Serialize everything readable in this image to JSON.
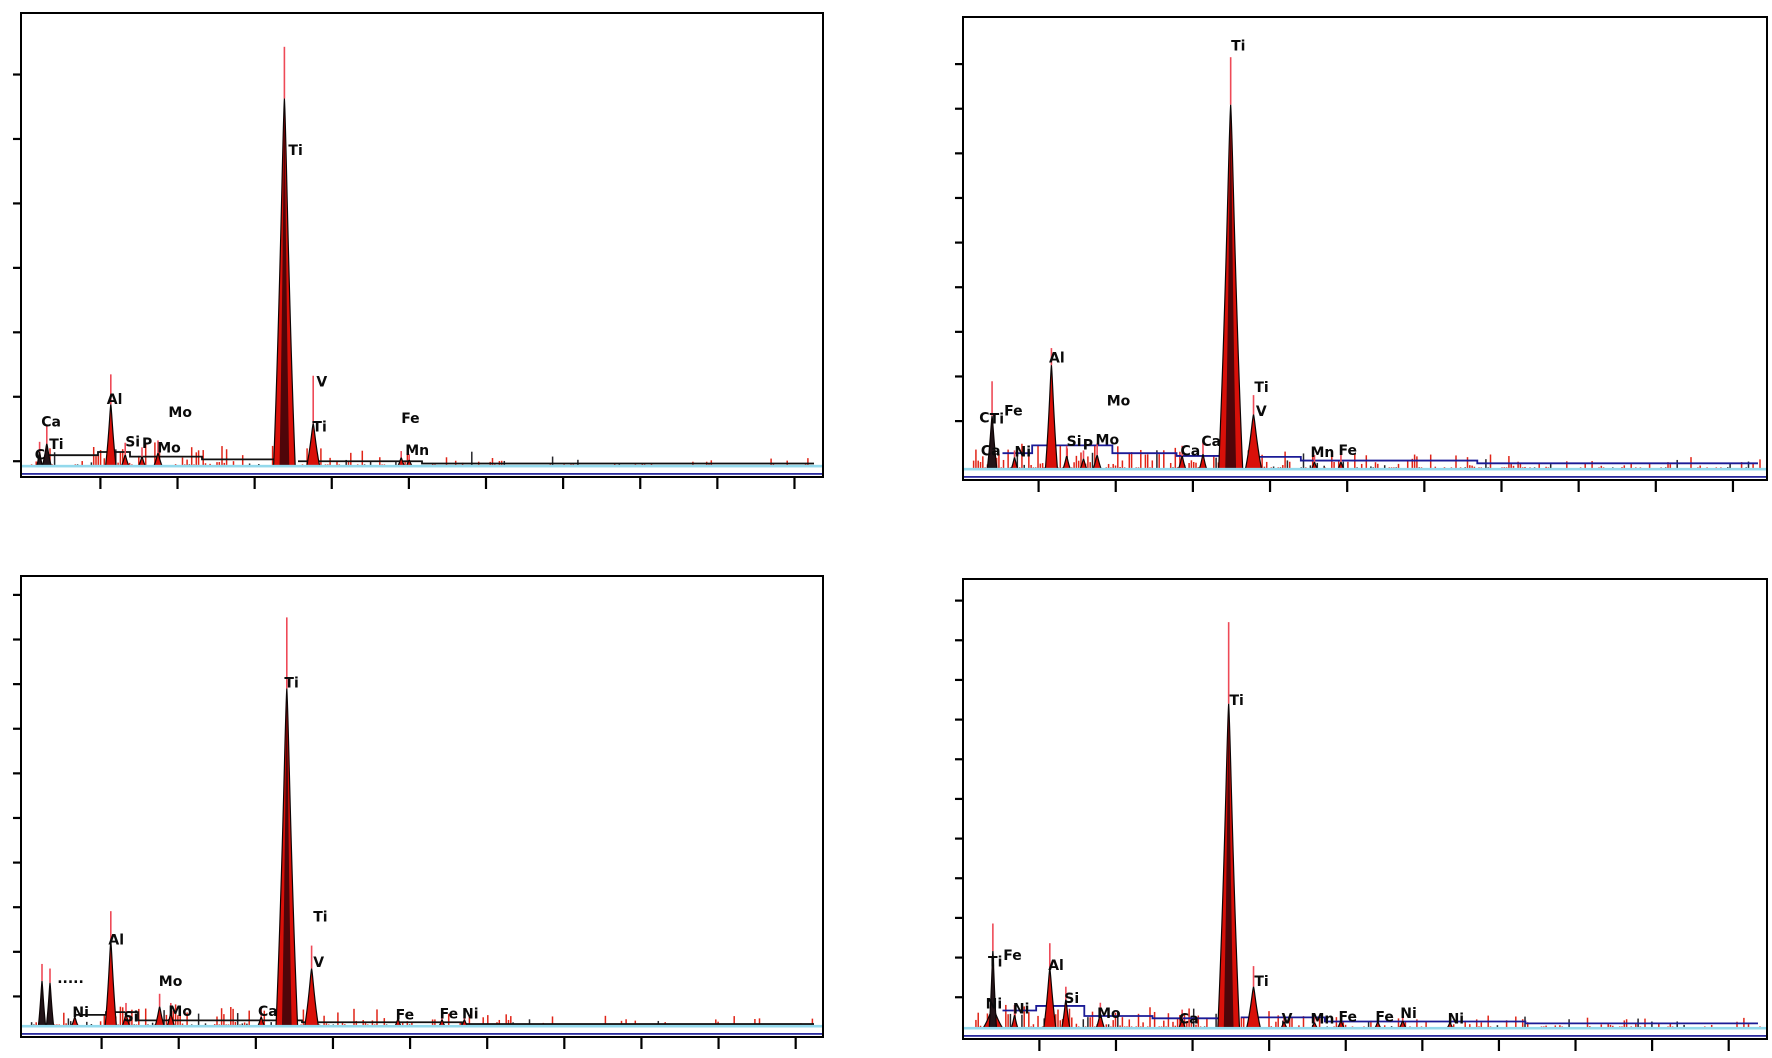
{
  "colors": {
    "background": "#ffffff",
    "panel_border": "#000000",
    "peak_red": "#d91009",
    "peak_dark": "#231418",
    "peak_core": "#360409",
    "peak_stroke": "#0d0505",
    "tip_pink": "#ee4a57",
    "noise_red": "#e02417",
    "noise_dark": "#26262b",
    "baseline_cyan": "#93d9ec",
    "baseline_navy": "#2a2a9e",
    "fit_navy": "#1b1b96",
    "fit_black": "#111111",
    "label_color": "#0a0a0a"
  },
  "chart_data": [
    {
      "id": "top-left",
      "type": "area",
      "title": "",
      "xlabel": "",
      "ylabel": "",
      "x_axis": {
        "tick_start_frac": 0.098,
        "tick_step_frac": 0.0964,
        "tick_count": 10,
        "tick_labels": []
      },
      "y_axis": {
        "tick_start_frac": 0.131,
        "tick_step_frac": 0.1395,
        "tick_count": 7,
        "tick_labels": []
      },
      "baseline_frac": 0.978,
      "peaks": [
        {
          "element": "C",
          "x": 0.022,
          "h": 0.03,
          "tip": 0.052,
          "w": 0.007,
          "dark": true
        },
        {
          "element": "Ca/Ti",
          "x": 0.031,
          "h": 0.048,
          "tip": 0.088,
          "w": 0.011,
          "dark": true
        },
        {
          "element": "Al",
          "x": 0.111,
          "h": 0.133,
          "tip": 0.198,
          "w": 0.013
        },
        {
          "element": "Si",
          "x": 0.129,
          "h": 0.024,
          "tip": 0.05,
          "w": 0.009
        },
        {
          "element": "P",
          "x": 0.15,
          "h": 0.02,
          "tip": 0.04,
          "w": 0.008
        },
        {
          "element": "Mo",
          "x": 0.17,
          "h": 0.028,
          "tip": 0.055,
          "w": 0.01
        },
        {
          "element": "Ti",
          "x": 0.328,
          "h": 0.795,
          "tip": 0.907,
          "w": 0.027,
          "core": true
        },
        {
          "element": "Ti/V",
          "x": 0.364,
          "h": 0.092,
          "tip": 0.195,
          "w": 0.016
        },
        {
          "element": "Fe",
          "x": 0.474,
          "h": 0.018,
          "tip": 0.032,
          "w": 0.008
        },
        {
          "element": "Mn",
          "x": 0.484,
          "h": 0.013,
          "tip": 0.025,
          "w": 0.007
        }
      ],
      "labels": [
        [
          "Ca",
          0.024,
          0.869
        ],
        [
          "C",
          0.016,
          0.94
        ],
        [
          "Ti",
          0.034,
          0.918
        ],
        [
          "Al",
          0.106,
          0.82
        ],
        [
          "Si",
          0.129,
          0.912
        ],
        [
          "P",
          0.15,
          0.916
        ],
        [
          "Mo",
          0.169,
          0.925
        ],
        [
          "Mo",
          0.183,
          0.848
        ],
        [
          "Ti",
          0.333,
          0.281
        ],
        [
          "V",
          0.368,
          0.783
        ],
        [
          "Ti",
          0.363,
          0.88
        ],
        [
          "Fe",
          0.474,
          0.861
        ],
        [
          "Mn",
          0.479,
          0.931
        ]
      ],
      "noise": {
        "seed": 7,
        "regions": [
          [
            0.012,
            0.1,
            0.03,
            0.55
          ],
          [
            0.1,
            0.25,
            0.032,
            0.6
          ],
          [
            0.25,
            0.43,
            0.028,
            0.5
          ],
          [
            0.43,
            0.6,
            0.02,
            0.35
          ],
          [
            0.6,
            0.995,
            0.015,
            0.22
          ]
        ]
      },
      "fit_line": {
        "color": "fit_black",
        "segments": [
          [
            0.03,
            0.095,
            0.955
          ],
          [
            0.095,
            0.135,
            0.948
          ],
          [
            0.135,
            0.225,
            0.958
          ],
          [
            0.225,
            0.315,
            0.964
          ],
          [
            0.345,
            0.5,
            0.968
          ],
          [
            0.5,
            0.99,
            0.973
          ]
        ]
      }
    },
    {
      "id": "top-right",
      "type": "area",
      "title": "",
      "xlabel": "",
      "ylabel": "",
      "x_axis": {
        "tick_start_frac": 0.093,
        "tick_step_frac": 0.0962,
        "tick_count": 10,
        "tick_labels": []
      },
      "y_axis": {
        "tick_start_frac": 0.1,
        "tick_step_frac": 0.0968,
        "tick_count": 9,
        "tick_labels": []
      },
      "baseline_frac": 0.978,
      "peaks": [
        {
          "element": "C/Ti/Ca",
          "x": 0.035,
          "h": 0.115,
          "tip": 0.19,
          "w": 0.012,
          "dark": true
        },
        {
          "element": "Ni",
          "x": 0.063,
          "h": 0.025,
          "tip": 0.04,
          "w": 0.008
        },
        {
          "element": "Al",
          "x": 0.109,
          "h": 0.225,
          "tip": 0.262,
          "w": 0.015
        },
        {
          "element": "Si",
          "x": 0.128,
          "h": 0.028,
          "tip": 0.05,
          "w": 0.009
        },
        {
          "element": "P",
          "x": 0.149,
          "h": 0.022,
          "tip": 0.04,
          "w": 0.008
        },
        {
          "element": "Mo",
          "x": 0.166,
          "h": 0.03,
          "tip": 0.055,
          "w": 0.01
        },
        {
          "element": "Ca",
          "x": 0.272,
          "h": 0.028,
          "tip": 0.05,
          "w": 0.009
        },
        {
          "element": "Ca",
          "x": 0.298,
          "h": 0.032,
          "tip": 0.06,
          "w": 0.009
        },
        {
          "element": "Ti",
          "x": 0.3325,
          "h": 0.79,
          "tip": 0.893,
          "w": 0.03,
          "core": true
        },
        {
          "element": "Ti/V",
          "x": 0.361,
          "h": 0.118,
          "tip": 0.16,
          "w": 0.02
        },
        {
          "element": "Mn",
          "x": 0.437,
          "h": 0.015,
          "tip": 0.03,
          "w": 0.007
        },
        {
          "element": "Fe",
          "x": 0.47,
          "h": 0.015,
          "tip": 0.03,
          "w": 0.007
        }
      ],
      "labels": [
        [
          "C",
          0.019,
          0.854
        ],
        [
          "Ti",
          0.032,
          0.856
        ],
        [
          "Fe",
          0.05,
          0.838
        ],
        [
          "Ca",
          0.021,
          0.925
        ],
        [
          "Ni",
          0.063,
          0.927
        ],
        [
          "Al",
          0.106,
          0.723
        ],
        [
          "Si",
          0.128,
          0.905
        ],
        [
          "P",
          0.148,
          0.912
        ],
        [
          "Mo",
          0.164,
          0.901
        ],
        [
          "Mo",
          0.178,
          0.817
        ],
        [
          "Ca",
          0.27,
          0.925
        ],
        [
          "Ca",
          0.296,
          0.905
        ],
        [
          "Ti",
          0.333,
          0.047
        ],
        [
          "Ti",
          0.362,
          0.787
        ],
        [
          "V",
          0.364,
          0.839
        ],
        [
          "Mn",
          0.432,
          0.928
        ],
        [
          "Fe",
          0.467,
          0.924
        ]
      ],
      "noise": {
        "seed": 11,
        "regions": [
          [
            0.012,
            0.1,
            0.035,
            0.65
          ],
          [
            0.1,
            0.3,
            0.032,
            0.7
          ],
          [
            0.3,
            0.45,
            0.028,
            0.6
          ],
          [
            0.45,
            0.7,
            0.022,
            0.5
          ],
          [
            0.7,
            0.995,
            0.018,
            0.4
          ]
        ]
      },
      "fit_line": {
        "color": "fit_navy",
        "segments": [
          [
            0.048,
            0.085,
            0.944
          ],
          [
            0.085,
            0.185,
            0.927
          ],
          [
            0.185,
            0.265,
            0.944
          ],
          [
            0.265,
            0.325,
            0.95
          ],
          [
            0.355,
            0.42,
            0.952
          ],
          [
            0.42,
            0.64,
            0.96
          ],
          [
            0.64,
            0.99,
            0.966
          ]
        ]
      }
    },
    {
      "id": "bottom-left",
      "type": "area",
      "title": "",
      "xlabel": "",
      "ylabel": "",
      "x_axis": {
        "tick_start_frac": 0.0995,
        "tick_step_frac": 0.0964,
        "tick_count": 10,
        "tick_labels": []
      },
      "y_axis": {
        "tick_start_frac": 0.039,
        "tick_step_frac": 0.0972,
        "tick_count": 10,
        "tick_labels": []
      },
      "baseline_frac": 0.978,
      "peaks": [
        {
          "element": "",
          "x": 0.025,
          "h": 0.098,
          "tip": 0.135,
          "w": 0.009,
          "dark": true
        },
        {
          "element": "",
          "x": 0.035,
          "h": 0.094,
          "tip": 0.125,
          "w": 0.009,
          "dark": true
        },
        {
          "element": "Ni",
          "x": 0.066,
          "h": 0.02,
          "tip": 0.035,
          "w": 0.008
        },
        {
          "element": "Al",
          "x": 0.111,
          "h": 0.185,
          "tip": 0.25,
          "w": 0.014
        },
        {
          "element": "Si",
          "x": 0.13,
          "h": 0.026,
          "tip": 0.05,
          "w": 0.009
        },
        {
          "element": "Mo",
          "x": 0.172,
          "h": 0.042,
          "tip": 0.07,
          "w": 0.011
        },
        {
          "element": "Mo",
          "x": 0.186,
          "h": 0.028,
          "tip": 0.05,
          "w": 0.009
        },
        {
          "element": "Ca",
          "x": 0.299,
          "h": 0.02,
          "tip": 0.04,
          "w": 0.008
        },
        {
          "element": "Ti",
          "x": 0.331,
          "h": 0.735,
          "tip": 0.89,
          "w": 0.027,
          "core": true
        },
        {
          "element": "Ti/V",
          "x": 0.362,
          "h": 0.125,
          "tip": 0.175,
          "w": 0.017
        },
        {
          "element": "Fe",
          "x": 0.47,
          "h": 0.016,
          "tip": 0.03,
          "w": 0.007
        },
        {
          "element": "Fe",
          "x": 0.525,
          "h": 0.014,
          "tip": 0.028,
          "w": 0.007
        },
        {
          "element": "Ni",
          "x": 0.553,
          "h": 0.014,
          "tip": 0.028,
          "w": 0.007
        }
      ],
      "labels": [
        [
          "·····",
          0.044,
          0.868
        ],
        [
          "Ni",
          0.063,
          0.935
        ],
        [
          "Al",
          0.108,
          0.777
        ],
        [
          "Si",
          0.127,
          0.944
        ],
        [
          "Mo",
          0.171,
          0.867
        ],
        [
          "Mo",
          0.183,
          0.932
        ],
        [
          "Ca",
          0.295,
          0.932
        ],
        [
          "Ti",
          0.328,
          0.217
        ],
        [
          "Ti",
          0.364,
          0.727
        ],
        [
          "V",
          0.364,
          0.826
        ],
        [
          "Fe",
          0.467,
          0.94
        ],
        [
          "Fe",
          0.522,
          0.938
        ],
        [
          "Ni",
          0.55,
          0.938
        ]
      ],
      "noise": {
        "seed": 13,
        "regions": [
          [
            0.012,
            0.1,
            0.032,
            0.6
          ],
          [
            0.1,
            0.3,
            0.03,
            0.65
          ],
          [
            0.3,
            0.45,
            0.024,
            0.5
          ],
          [
            0.45,
            0.62,
            0.018,
            0.4
          ],
          [
            0.62,
            0.995,
            0.014,
            0.28
          ]
        ]
      },
      "fit_line": {
        "color": "fit_black",
        "segments": [
          [
            0.065,
            0.105,
            0.954
          ],
          [
            0.105,
            0.145,
            0.948
          ],
          [
            0.145,
            0.35,
            0.966
          ],
          [
            0.35,
            0.55,
            0.97
          ],
          [
            0.55,
            0.99,
            0.974
          ]
        ]
      }
    },
    {
      "id": "bottom-right",
      "type": "area",
      "title": "",
      "xlabel": "",
      "ylabel": "",
      "x_axis": {
        "tick_start_frac": 0.094,
        "tick_step_frac": 0.0955,
        "tick_count": 10,
        "tick_labels": []
      },
      "y_axis": {
        "tick_start_frac": 0.045,
        "tick_step_frac": 0.0866,
        "tick_count": 11,
        "tick_labels": []
      },
      "baseline_frac": 0.978,
      "peaks": [
        {
          "element": "Ti/Fe base",
          "x": 0.036,
          "h": 0.045,
          "tip": 0.0,
          "w": 0.024
        },
        {
          "element": "Ti/Fe",
          "x": 0.036,
          "h": 0.168,
          "tip": 0.228,
          "w": 0.009,
          "dark": true
        },
        {
          "element": "Ni",
          "x": 0.063,
          "h": 0.028,
          "tip": 0.05,
          "w": 0.008
        },
        {
          "element": "Al",
          "x": 0.107,
          "h": 0.13,
          "tip": 0.185,
          "w": 0.015
        },
        {
          "element": "Si",
          "x": 0.127,
          "h": 0.062,
          "tip": 0.09,
          "w": 0.01
        },
        {
          "element": "Mo",
          "x": 0.17,
          "h": 0.032,
          "tip": 0.055,
          "w": 0.01
        },
        {
          "element": "Ca",
          "x": 0.272,
          "h": 0.02,
          "tip": 0.04,
          "w": 0.008
        },
        {
          "element": "Ti",
          "x": 0.33,
          "h": 0.708,
          "tip": 0.886,
          "w": 0.027,
          "core": true
        },
        {
          "element": "Ti",
          "x": 0.361,
          "h": 0.09,
          "tip": 0.135,
          "w": 0.017
        },
        {
          "element": "V",
          "x": 0.399,
          "h": 0.014,
          "tip": 0.028,
          "w": 0.007
        },
        {
          "element": "Mn",
          "x": 0.437,
          "h": 0.012,
          "tip": 0.024,
          "w": 0.007
        },
        {
          "element": "Fe",
          "x": 0.47,
          "h": 0.016,
          "tip": 0.03,
          "w": 0.008
        },
        {
          "element": "Fe",
          "x": 0.516,
          "h": 0.014,
          "tip": 0.028,
          "w": 0.007
        },
        {
          "element": "Ni",
          "x": 0.547,
          "h": 0.016,
          "tip": 0.03,
          "w": 0.008
        },
        {
          "element": "Ni",
          "x": 0.606,
          "h": 0.012,
          "tip": 0.024,
          "w": 0.007
        }
      ],
      "labels": [
        [
          "Ti",
          0.03,
          0.82
        ],
        [
          "Fe",
          0.049,
          0.806
        ],
        [
          "Ni",
          0.027,
          0.912
        ],
        [
          "Ni",
          0.061,
          0.922
        ],
        [
          "Al",
          0.105,
          0.828
        ],
        [
          "Si",
          0.125,
          0.9
        ],
        [
          "Mo",
          0.166,
          0.932
        ],
        [
          "Ca",
          0.268,
          0.944
        ],
        [
          "Ti",
          0.331,
          0.249
        ],
        [
          "Ti",
          0.362,
          0.862
        ],
        [
          "V",
          0.396,
          0.944
        ],
        [
          "Mn",
          0.432,
          0.944
        ],
        [
          "Fe",
          0.467,
          0.94
        ],
        [
          "Fe",
          0.513,
          0.94
        ],
        [
          "Ni",
          0.544,
          0.932
        ],
        [
          "Ni",
          0.603,
          0.944
        ]
      ],
      "noise": {
        "seed": 17,
        "regions": [
          [
            0.012,
            0.1,
            0.034,
            0.65
          ],
          [
            0.1,
            0.3,
            0.03,
            0.65
          ],
          [
            0.3,
            0.45,
            0.024,
            0.55
          ],
          [
            0.45,
            0.7,
            0.018,
            0.45
          ],
          [
            0.7,
            0.995,
            0.014,
            0.35
          ]
        ]
      },
      "fit_line": {
        "color": "fit_navy",
        "segments": [
          [
            0.048,
            0.09,
            0.94
          ],
          [
            0.09,
            0.15,
            0.93
          ],
          [
            0.15,
            0.235,
            0.952
          ],
          [
            0.235,
            0.325,
            0.957
          ],
          [
            0.345,
            0.45,
            0.955
          ],
          [
            0.45,
            0.7,
            0.964
          ],
          [
            0.7,
            0.99,
            0.968
          ]
        ]
      }
    }
  ]
}
